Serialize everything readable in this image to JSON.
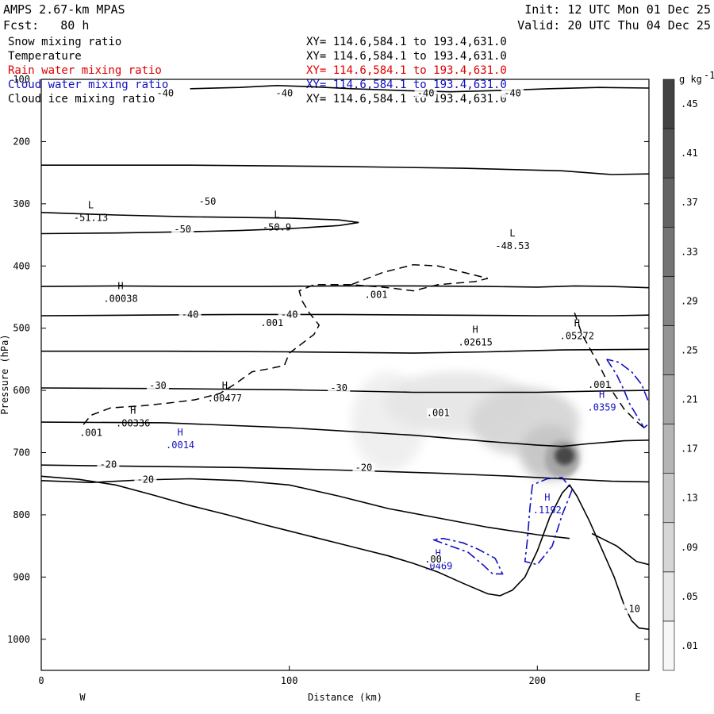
{
  "header": {
    "model": "AMPS 2.67-km MPAS",
    "init": "Init: 12 UTC Mon 01 Dec 25",
    "fcst": "Fcst:   80 h",
    "valid": "Valid: 20 UTC Thu 04 Dec 25"
  },
  "fields": [
    {
      "name": "Snow mixing ratio",
      "xy": "XY= 114.6,584.1 to 193.4,631.0",
      "color": "#000000"
    },
    {
      "name": "Temperature",
      "xy": "XY= 114.6,584.1 to 193.4,631.0",
      "color": "#000000"
    },
    {
      "name": "Rain water mixing ratio",
      "xy": "XY= 114.6,584.1 to 193.4,631.0",
      "color": "#e00000"
    },
    {
      "name": "Cloud water mixing ratio",
      "xy": "XY= 114.6,584.1 to 193.4,631.0",
      "color": "#1010c0"
    },
    {
      "name": "Cloud ice mixing ratio",
      "xy": "XY= 114.6,584.1 to 193.4,631.0",
      "color": "#000000"
    }
  ],
  "chart_data": {
    "type": "heatmap",
    "xlabel": "Distance (km)",
    "ylabel": "Pressure (hPa)",
    "xlim": [
      0,
      245
    ],
    "ylim": [
      1050,
      100
    ],
    "x_ticks": [
      0,
      100,
      200
    ],
    "y_ticks": [
      100,
      200,
      300,
      400,
      500,
      600,
      700,
      800,
      900,
      1000
    ],
    "x_left_label": "W",
    "x_right_label": "E",
    "colorbar": {
      "unit_label": "g kg",
      "unit_exponent": "-1",
      "levels": [
        ".01",
        ".05",
        ".09",
        ".13",
        ".17",
        ".21",
        ".25",
        ".29",
        ".33",
        ".37",
        ".41",
        ".45"
      ],
      "range": [
        -0.01,
        0.49
      ]
    },
    "terrain": [
      [
        0,
        738
      ],
      [
        15,
        743
      ],
      [
        30,
        752
      ],
      [
        45,
        768
      ],
      [
        60,
        785
      ],
      [
        75,
        800
      ],
      [
        90,
        816
      ],
      [
        100,
        826
      ],
      [
        110,
        836
      ],
      [
        120,
        846
      ],
      [
        130,
        856
      ],
      [
        140,
        866
      ],
      [
        150,
        878
      ],
      [
        160,
        892
      ],
      [
        170,
        910
      ],
      [
        180,
        927
      ],
      [
        185,
        930
      ],
      [
        190,
        921
      ],
      [
        195,
        900
      ],
      [
        200,
        858
      ],
      [
        205,
        804
      ],
      [
        210,
        765
      ],
      [
        213,
        752
      ],
      [
        216,
        770
      ],
      [
        221,
        810
      ],
      [
        226,
        855
      ],
      [
        231,
        900
      ],
      [
        235,
        945
      ],
      [
        238,
        970
      ],
      [
        241,
        982
      ],
      [
        245,
        984
      ]
    ],
    "temperature_contours": [
      {
        "label": "-40",
        "points": [
          [
            0,
            433
          ],
          [
            30,
            432
          ],
          [
            60,
            433
          ],
          [
            90,
            433
          ],
          [
            120,
            432
          ],
          [
            150,
            432
          ],
          [
            180,
            433
          ],
          [
            200,
            434
          ],
          [
            215,
            432
          ],
          [
            230,
            433
          ],
          [
            245,
            435
          ]
        ]
      },
      {
        "label": "-40",
        "points": [
          [
            0,
            480
          ],
          [
            40,
            479
          ],
          [
            80,
            478
          ],
          [
            120,
            478
          ],
          [
            160,
            479
          ],
          [
            200,
            480
          ],
          [
            230,
            480
          ],
          [
            245,
            479
          ]
        ]
      },
      {
        "label": "",
        "points": [
          [
            0,
            537
          ],
          [
            50,
            537
          ],
          [
            100,
            538
          ],
          [
            150,
            540
          ],
          [
            180,
            538
          ],
          [
            210,
            535
          ],
          [
            245,
            534
          ]
        ]
      },
      {
        "label": "-30",
        "points": [
          [
            0,
            596
          ],
          [
            50,
            597
          ],
          [
            100,
            599
          ],
          [
            150,
            603
          ],
          [
            200,
            603
          ],
          [
            225,
            601
          ],
          [
            245,
            600
          ]
        ]
      },
      {
        "label": "",
        "points": [
          [
            0,
            651
          ],
          [
            50,
            652
          ],
          [
            100,
            660
          ],
          [
            150,
            672
          ],
          [
            180,
            682
          ],
          [
            200,
            688
          ],
          [
            210,
            690
          ],
          [
            220,
            686
          ],
          [
            235,
            681
          ],
          [
            245,
            680
          ]
        ]
      },
      {
        "label": "-20",
        "points": [
          [
            0,
            720
          ],
          [
            40,
            722
          ],
          [
            80,
            724
          ],
          [
            120,
            728
          ],
          [
            160,
            733
          ],
          [
            190,
            738
          ],
          [
            210,
            742
          ],
          [
            230,
            746
          ],
          [
            245,
            747
          ]
        ]
      },
      {
        "label": "-20",
        "points": [
          [
            0,
            745
          ],
          [
            20,
            748
          ],
          [
            40,
            744
          ],
          [
            60,
            742
          ],
          [
            80,
            745
          ],
          [
            100,
            752
          ],
          [
            120,
            770
          ],
          [
            140,
            790
          ],
          [
            160,
            805
          ],
          [
            180,
            820
          ],
          [
            200,
            832
          ],
          [
            213,
            838
          ]
        ]
      },
      {
        "label": "-50",
        "points": [
          [
            0,
            314
          ],
          [
            30,
            318
          ],
          [
            60,
            321
          ],
          [
            80,
            322
          ],
          [
            100,
            323
          ],
          [
            120,
            326
          ],
          [
            128,
            330
          ],
          [
            120,
            335
          ],
          [
            100,
            340
          ],
          [
            80,
            343
          ],
          [
            60,
            345
          ],
          [
            30,
            347
          ],
          [
            0,
            348
          ]
        ]
      },
      {
        "label": "",
        "points": [
          [
            0,
            238
          ],
          [
            60,
            238
          ],
          [
            120,
            240
          ],
          [
            170,
            243
          ],
          [
            210,
            247
          ],
          [
            230,
            253
          ],
          [
            245,
            252
          ]
        ]
      },
      {
        "label": "-40",
        "points": [
          [
            60,
            115
          ],
          [
            80,
            113
          ],
          [
            95,
            110
          ],
          [
            110,
            112
          ],
          [
            125,
            115
          ],
          [
            145,
            118
          ],
          [
            165,
            120
          ],
          [
            185,
            118
          ],
          [
            205,
            115
          ],
          [
            225,
            113
          ],
          [
            245,
            114
          ]
        ]
      },
      {
        "label": "-10",
        "points": [
          [
            222,
            830
          ],
          [
            232,
            850
          ],
          [
            240,
            875
          ],
          [
            245,
            880
          ]
        ]
      }
    ],
    "snow_shading": [
      {
        "value": 0.03,
        "center": [
          140,
          650
        ],
        "rx": 15,
        "ry": 80
      },
      {
        "value": 0.05,
        "center": [
          168,
          620
        ],
        "rx": 30,
        "ry": 50
      },
      {
        "value": 0.09,
        "center": [
          195,
          650
        ],
        "rx": 22,
        "ry": 55
      },
      {
        "value": 0.13,
        "center": [
          205,
          700
        ],
        "rx": 12,
        "ry": 45
      },
      {
        "value": 0.21,
        "center": [
          210,
          710
        ],
        "rx": 7,
        "ry": 30
      },
      {
        "value": 0.45,
        "center": [
          211,
          705
        ],
        "rx": 4,
        "ry": 15
      }
    ],
    "cloud_ice_contour": {
      "label": ".001",
      "points": [
        [
          17,
          655
        ],
        [
          20,
          640
        ],
        [
          28,
          628
        ],
        [
          40,
          625
        ],
        [
          52,
          620
        ],
        [
          62,
          615
        ],
        [
          72,
          605
        ],
        [
          78,
          590
        ],
        [
          85,
          570
        ],
        [
          92,
          565
        ],
        [
          98,
          560
        ],
        [
          100,
          540
        ],
        [
          105,
          525
        ],
        [
          110,
          510
        ],
        [
          112,
          495
        ],
        [
          108,
          475
        ],
        [
          105,
          455
        ],
        [
          104,
          440
        ],
        [
          110,
          430
        ],
        [
          125,
          430
        ],
        [
          140,
          435
        ],
        [
          150,
          440
        ],
        [
          160,
          430
        ],
        [
          175,
          425
        ],
        [
          180,
          420
        ],
        [
          170,
          410
        ],
        [
          160,
          400
        ],
        [
          150,
          398
        ],
        [
          138,
          410
        ],
        [
          125,
          430
        ]
      ]
    },
    "cloud_ice_contour_2": {
      "label": ".001",
      "points": [
        [
          215,
          475
        ],
        [
          218,
          510
        ],
        [
          225,
          560
        ],
        [
          230,
          600
        ],
        [
          235,
          630
        ],
        [
          240,
          650
        ],
        [
          243,
          660
        ]
      ]
    },
    "cloud_water_contours": [
      {
        "label": "",
        "points": [
          [
            158,
            840
          ],
          [
            165,
            850
          ],
          [
            172,
            860
          ],
          [
            178,
            880
          ],
          [
            182,
            895
          ],
          [
            186,
            895
          ],
          [
            183,
            870
          ],
          [
            176,
            855
          ],
          [
            170,
            845
          ],
          [
            162,
            838
          ],
          [
            158,
            840
          ]
        ]
      },
      {
        "label": "",
        "points": [
          [
            198,
            752
          ],
          [
            197,
            790
          ],
          [
            196,
            840
          ],
          [
            195,
            875
          ],
          [
            200,
            880
          ],
          [
            206,
            850
          ],
          [
            210,
            800
          ],
          [
            214,
            760
          ],
          [
            210,
            740
          ],
          [
            204,
            742
          ],
          [
            198,
            752
          ]
        ]
      },
      {
        "label": "",
        "points": [
          [
            228,
            550
          ],
          [
            232,
            575
          ],
          [
            235,
            600
          ],
          [
            237,
            620
          ],
          [
            240,
            640
          ],
          [
            243,
            660
          ],
          [
            246,
            650
          ],
          [
            245,
            620
          ],
          [
            242,
            590
          ],
          [
            238,
            570
          ],
          [
            233,
            555
          ],
          [
            228,
            550
          ]
        ]
      }
    ],
    "extrema": [
      {
        "type": "L",
        "value": "-51.13",
        "x": 20,
        "p": 320
      },
      {
        "type": "L",
        "value": "-50.9",
        "x": 95,
        "p": 335
      },
      {
        "type": "L",
        "value": "-48.53",
        "x": 190,
        "p": 365
      },
      {
        "type": "H",
        "value": ".00038",
        "x": 32,
        "p": 450
      },
      {
        "type": "H",
        "value": ".02615",
        "x": 175,
        "p": 520
      },
      {
        "type": "H",
        "value": ".05272",
        "x": 216,
        "p": 510
      },
      {
        "type": "H",
        "value": ".00336",
        "x": 37,
        "p": 650
      },
      {
        "type": "H",
        "value": ".00477",
        "x": 74,
        "p": 610
      },
      {
        "type": "H",
        "value": ".0014",
        "x": 56,
        "p": 685,
        "color": "#1010c0"
      },
      {
        "type": "H",
        "value": ".1192",
        "x": 204,
        "p": 790,
        "color": "#1010c0"
      },
      {
        "type": "H",
        "value": ".0469",
        "x": 160,
        "p": 880,
        "color": "#1010c0"
      },
      {
        "type": "H",
        "value": ".0359",
        "x": 226,
        "p": 625,
        "color": "#1010c0"
      }
    ],
    "misc_labels": [
      {
        "text": ".001",
        "x": 20,
        "p": 672
      },
      {
        "text": ".001",
        "x": 135,
        "p": 450
      },
      {
        "text": ".001",
        "x": 93,
        "p": 495
      },
      {
        "text": ".001",
        "x": 160,
        "p": 640
      },
      {
        "text": ".001",
        "x": 225,
        "p": 595
      },
      {
        "text": ".00",
        "x": 158,
        "p": 875
      },
      {
        "text": "-40",
        "x": 50,
        "p": 126
      },
      {
        "text": "-40",
        "x": 98,
        "p": 126
      },
      {
        "text": "-40",
        "x": 155,
        "p": 126
      },
      {
        "text": "-40",
        "x": 190,
        "p": 126
      },
      {
        "text": "-50",
        "x": 67,
        "p": 300
      },
      {
        "text": "-50",
        "x": 57,
        "p": 345
      },
      {
        "text": "-40",
        "x": 60,
        "p": 482
      },
      {
        "text": "-40",
        "x": 100,
        "p": 482
      },
      {
        "text": "-30",
        "x": 47,
        "p": 596
      },
      {
        "text": "-30",
        "x": 120,
        "p": 600
      },
      {
        "text": "-20",
        "x": 27,
        "p": 723
      },
      {
        "text": "-20",
        "x": 42,
        "p": 747
      },
      {
        "text": "-20",
        "x": 130,
        "p": 728
      },
      {
        "text": "-10",
        "x": 238,
        "p": 955
      }
    ]
  }
}
